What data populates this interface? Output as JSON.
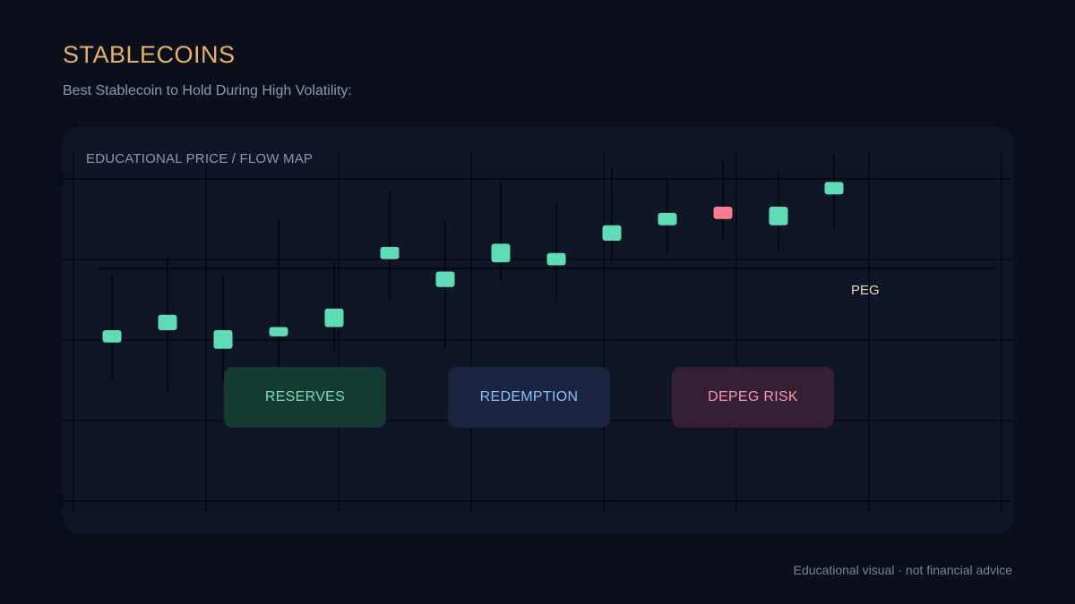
{
  "header": {
    "title": "STABLECOINS",
    "subtitle": "Best Stablecoin to Hold During High Volatility:"
  },
  "panel": {
    "label": "EDUCATIONAL PRICE / FLOW MAP",
    "peg_label": "PEG"
  },
  "chips": {
    "reserves": "RESERVES",
    "redemption": "REDEMPTION",
    "depeg_risk": "DEPEG RISK"
  },
  "footer": "Educational visual · not financial advice",
  "colors": {
    "bullish": "#5fdcb5",
    "bearish": "#ff7a90",
    "title": "#e7b06c",
    "background": "#0a0f1a",
    "panel": "#0f1628"
  },
  "chart_data": {
    "type": "candlestick",
    "title": "",
    "grid": true,
    "candles": [
      {
        "open": 76,
        "close": 80,
        "high": 98,
        "low": 64
      },
      {
        "open": 80,
        "close": 85,
        "high": 104,
        "low": 60
      },
      {
        "open": 74,
        "close": 80,
        "high": 98,
        "low": 63
      },
      {
        "open": 78,
        "close": 81,
        "high": 116,
        "low": 66
      },
      {
        "open": 81,
        "close": 87,
        "high": 102,
        "low": 73
      },
      {
        "open": 103,
        "close": 107,
        "high": 125,
        "low": 90
      },
      {
        "open": 94,
        "close": 99,
        "high": 115,
        "low": 74
      },
      {
        "open": 102,
        "close": 108,
        "high": 128,
        "low": 96
      },
      {
        "open": 101,
        "close": 105,
        "high": 121,
        "low": 89
      },
      {
        "open": 109,
        "close": 114,
        "high": 133,
        "low": 102
      },
      {
        "open": 114,
        "close": 118,
        "high": 129,
        "low": 105
      },
      {
        "open": 120,
        "close": 116,
        "high": 135,
        "low": 109
      },
      {
        "open": 114,
        "close": 120,
        "high": 131,
        "low": 106
      },
      {
        "open": 124,
        "close": 128,
        "high": 137,
        "low": 113
      }
    ],
    "peg": 100,
    "ylim": [
      20,
      140
    ]
  }
}
